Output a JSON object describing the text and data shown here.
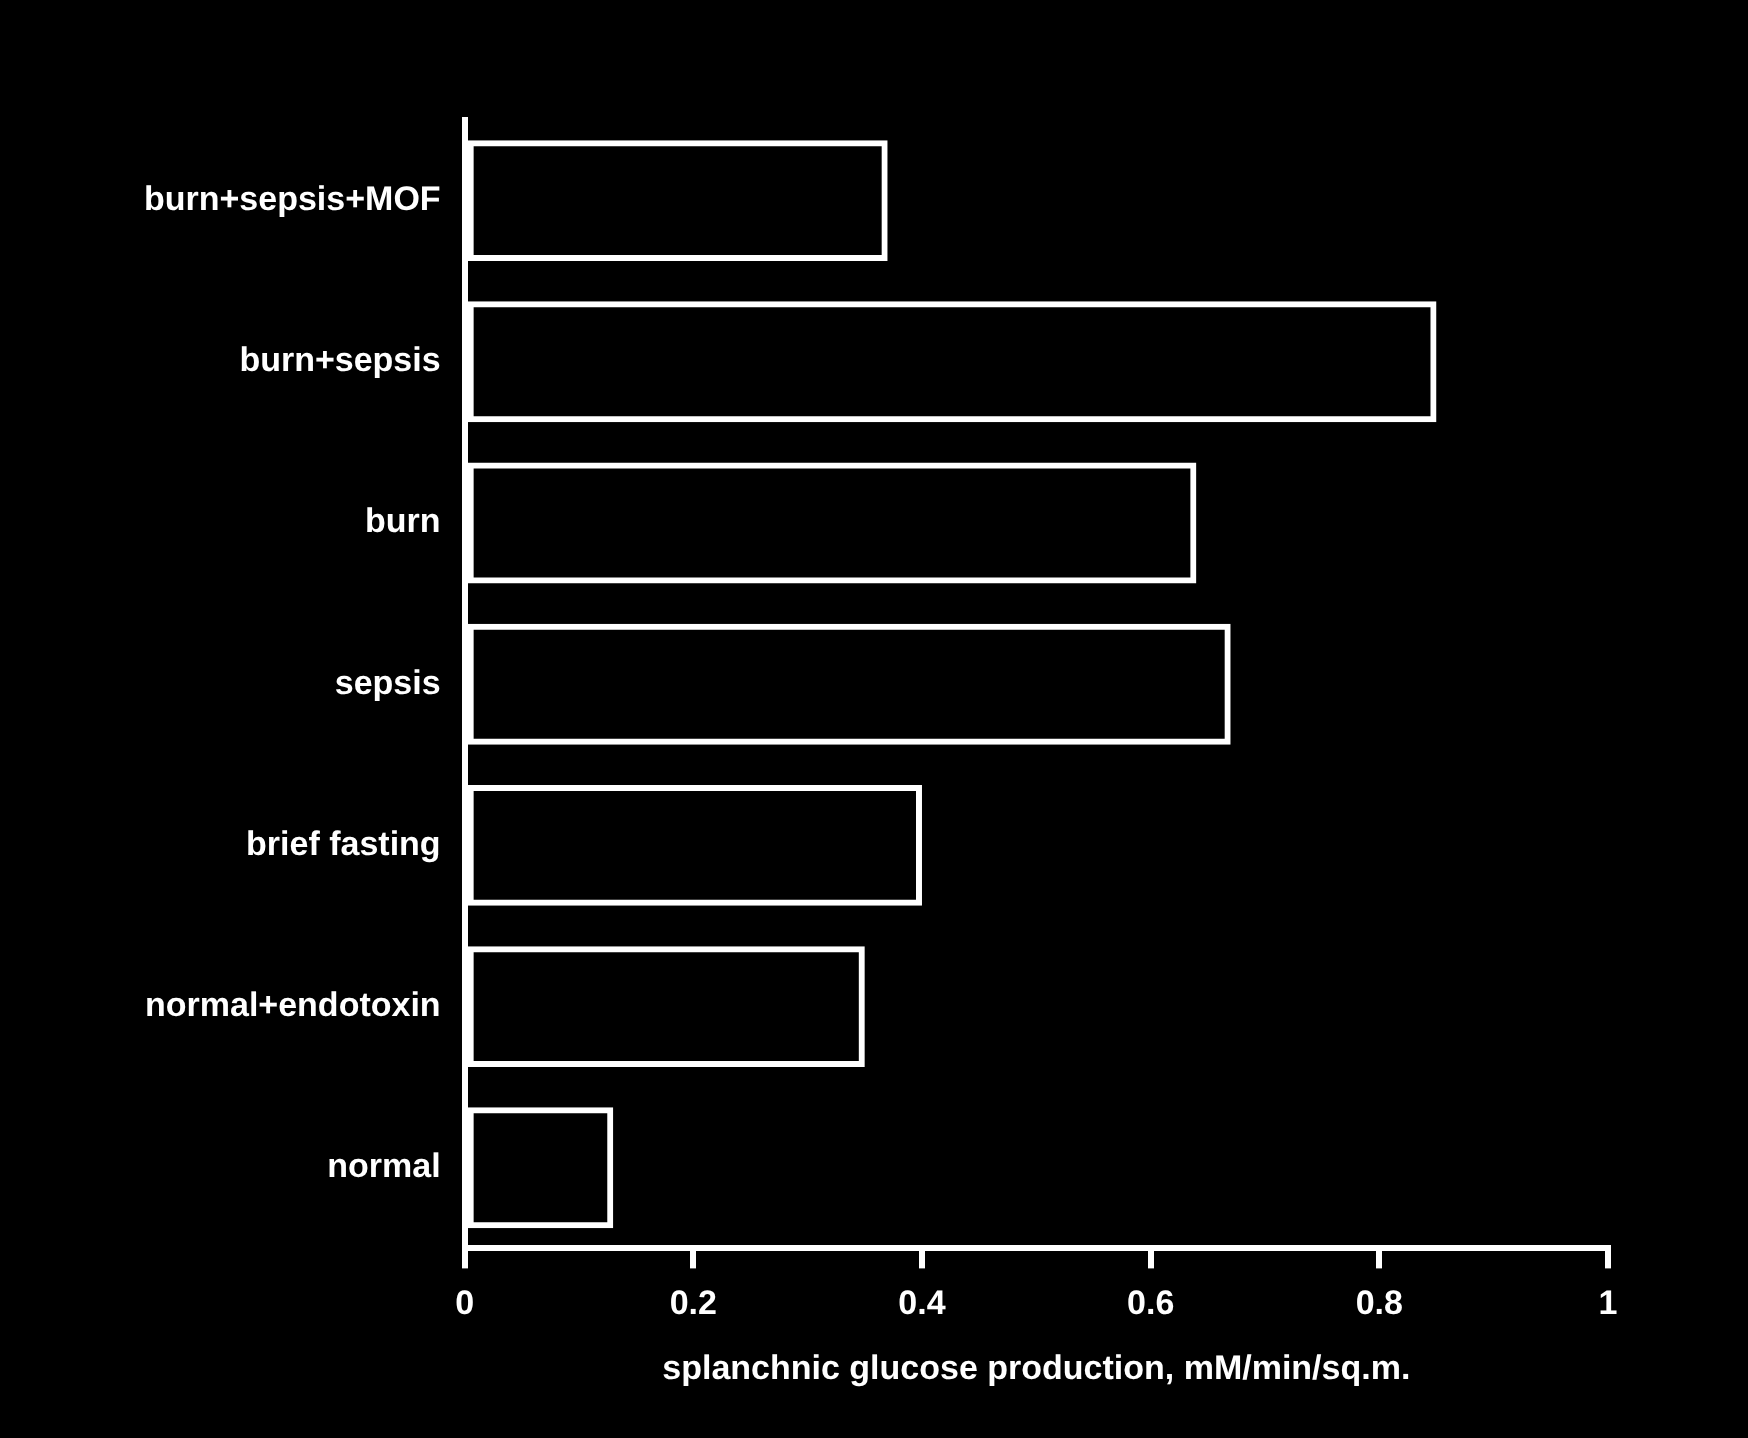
{
  "chart_data": {
    "type": "bar",
    "orientation": "horizontal",
    "categories": [
      "burn+sepsis+MOF",
      "burn+sepsis",
      "burn",
      "sepsis",
      "brief fasting",
      "normal+endotoxin",
      "normal"
    ],
    "values": [
      0.37,
      0.85,
      0.64,
      0.67,
      0.4,
      0.35,
      0.13
    ],
    "color": "#ffffff",
    "xlim": [
      0,
      1
    ],
    "xticks": [
      0,
      0.2,
      0.4,
      0.6,
      0.8,
      1
    ],
    "xlabel": "splanchnic glucose production, mM/min/sq.m.",
    "grid": false,
    "legend": false
  }
}
